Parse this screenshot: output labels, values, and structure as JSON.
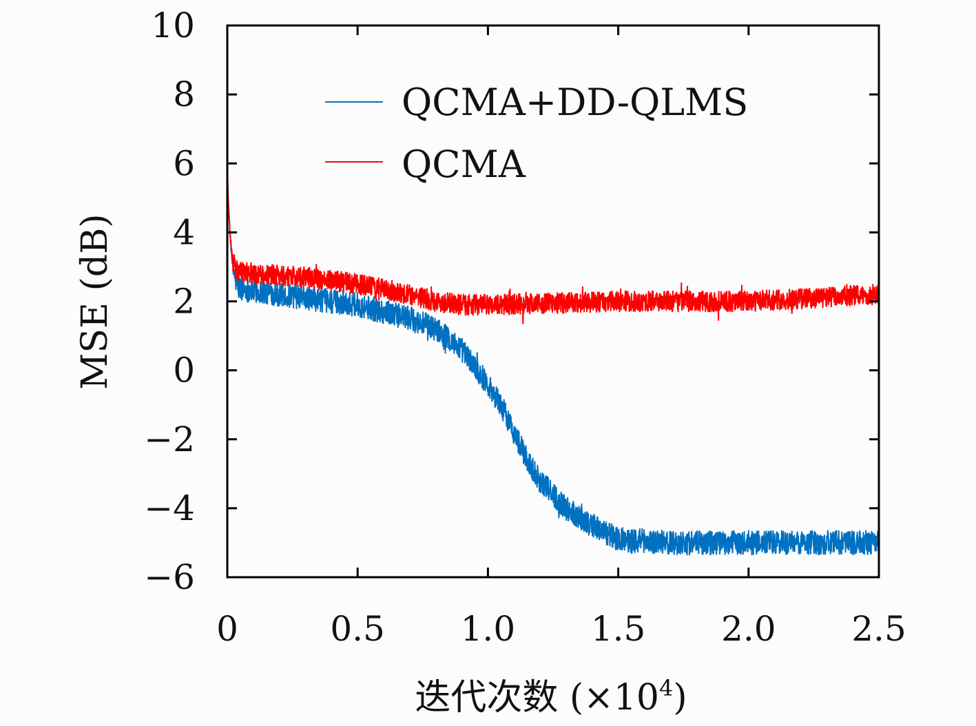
{
  "chart_data": {
    "type": "line",
    "title": "",
    "xlabel": "迭代次数 (×10⁴)",
    "xlabel_main": "迭代次数 (×10",
    "xlabel_sup": "4",
    "xlabel_close": ")",
    "ylabel": "MSE (dB)",
    "xlim": [
      0,
      2.5
    ],
    "ylim": [
      -6,
      10
    ],
    "xticks": [
      0,
      0.5,
      1.0,
      1.5,
      2.0,
      2.5
    ],
    "xtick_labels": [
      "0",
      "0.5",
      "1.0",
      "1.5",
      "2.0",
      "2.5"
    ],
    "yticks": [
      -6,
      -4,
      -2,
      0,
      2,
      4,
      6,
      8,
      10
    ],
    "ytick_labels": [
      "−6",
      "−4",
      "−2",
      "0",
      "2",
      "4",
      "6",
      "8",
      "10"
    ],
    "legend_position": "top-right",
    "series": [
      {
        "name": "QCMA+DD-QLMS",
        "color": "#0070c0",
        "noise_amplitude": 0.35,
        "x": [
          0,
          0.003,
          0.01,
          0.02,
          0.04,
          0.1,
          0.3,
          0.5,
          0.7,
          0.8,
          0.9,
          1.0,
          1.05,
          1.1,
          1.15,
          1.2,
          1.3,
          1.4,
          1.5,
          1.7,
          2.0,
          2.5
        ],
        "values": [
          6.0,
          5.0,
          4.0,
          3.0,
          2.4,
          2.3,
          2.1,
          1.9,
          1.5,
          1.2,
          0.6,
          -0.4,
          -1.0,
          -1.8,
          -2.6,
          -3.2,
          -4.0,
          -4.5,
          -4.9,
          -5.0,
          -5.0,
          -5.0
        ]
      },
      {
        "name": "QCMA",
        "color": "#ff0000",
        "noise_amplitude": 0.3,
        "x": [
          0,
          0.003,
          0.01,
          0.02,
          0.04,
          0.1,
          0.3,
          0.5,
          0.7,
          0.8,
          0.9,
          1.0,
          1.5,
          2.0,
          2.5
        ],
        "values": [
          6.0,
          5.0,
          4.0,
          3.2,
          2.9,
          2.8,
          2.7,
          2.5,
          2.2,
          2.0,
          1.9,
          1.9,
          2.0,
          2.0,
          2.2
        ]
      }
    ]
  }
}
